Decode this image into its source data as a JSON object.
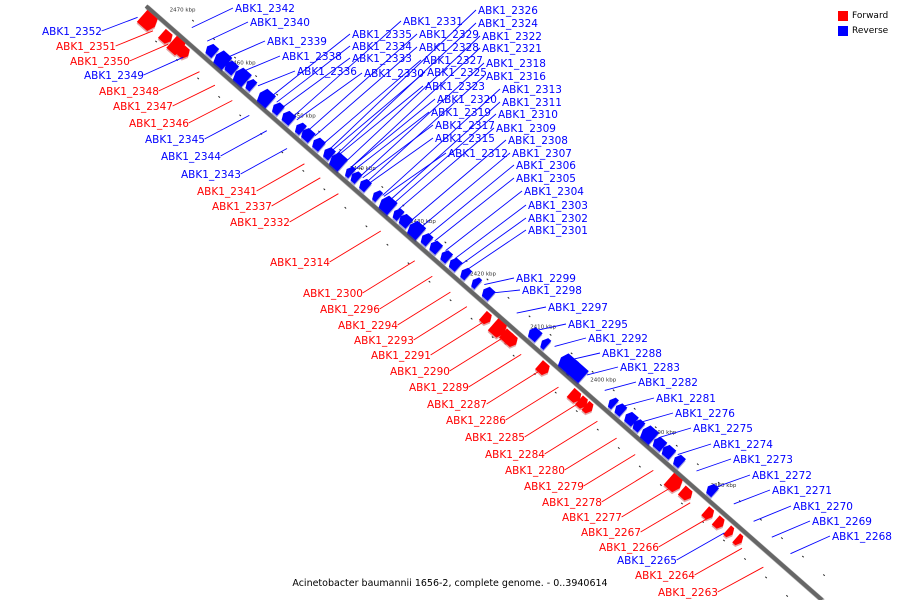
{
  "legend": {
    "forward_label": "Forward",
    "reverse_label": "Reverse",
    "forward_color": "#ff0000",
    "reverse_color": "#0000ff"
  },
  "caption": "Acinetobacter baumannii 1656-2, complete genome. - 0..3940614",
  "scale_labels": [
    "2470 kbp",
    "2460 kbp",
    "2450 kbp",
    "2440 kbp",
    "2430 kbp",
    "2420 kbp",
    "2410 kbp",
    "2400 kbp",
    "2390 kbp",
    "2380 kbp"
  ],
  "genes": [
    {
      "label": "ABK1_2352",
      "strand": "reverse"
    },
    {
      "label": "ABK1_2351",
      "strand": "forward"
    },
    {
      "label": "ABK1_2350",
      "strand": "forward"
    },
    {
      "label": "ABK1_2349",
      "strand": "reverse"
    },
    {
      "label": "ABK1_2348",
      "strand": "forward"
    },
    {
      "label": "ABK1_2347",
      "strand": "forward"
    },
    {
      "label": "ABK1_2346",
      "strand": "forward"
    },
    {
      "label": "ABK1_2345",
      "strand": "reverse"
    },
    {
      "label": "ABK1_2344",
      "strand": "reverse"
    },
    {
      "label": "ABK1_2343",
      "strand": "reverse"
    },
    {
      "label": "ABK1_2341",
      "strand": "forward"
    },
    {
      "label": "ABK1_2337",
      "strand": "forward"
    },
    {
      "label": "ABK1_2332",
      "strand": "forward"
    },
    {
      "label": "ABK1_2314",
      "strand": "forward"
    },
    {
      "label": "ABK1_2342",
      "strand": "reverse"
    },
    {
      "label": "ABK1_2340",
      "strand": "reverse"
    },
    {
      "label": "ABK1_2339",
      "strand": "reverse"
    },
    {
      "label": "ABK1_2338",
      "strand": "reverse"
    },
    {
      "label": "ABK1_2336",
      "strand": "reverse"
    },
    {
      "label": "ABK1_2335",
      "strand": "reverse"
    },
    {
      "label": "ABK1_2334",
      "strand": "reverse"
    },
    {
      "label": "ABK1_2333",
      "strand": "reverse"
    },
    {
      "label": "ABK1_2330",
      "strand": "reverse"
    },
    {
      "label": "ABK1_2331",
      "strand": "reverse"
    },
    {
      "label": "ABK1_2329",
      "strand": "reverse"
    },
    {
      "label": "ABK1_2328",
      "strand": "reverse"
    },
    {
      "label": "ABK1_2327",
      "strand": "reverse"
    },
    {
      "label": "ABK1_2325",
      "strand": "reverse"
    },
    {
      "label": "ABK1_2323",
      "strand": "reverse"
    },
    {
      "label": "ABK1_2320",
      "strand": "reverse"
    },
    {
      "label": "ABK1_2319",
      "strand": "reverse"
    },
    {
      "label": "ABK1_2317",
      "strand": "reverse"
    },
    {
      "label": "ABK1_2315",
      "strand": "reverse"
    },
    {
      "label": "ABK1_2312",
      "strand": "reverse"
    },
    {
      "label": "ABK1_2326",
      "strand": "reverse"
    },
    {
      "label": "ABK1_2324",
      "strand": "reverse"
    },
    {
      "label": "ABK1_2322",
      "strand": "reverse"
    },
    {
      "label": "ABK1_2321",
      "strand": "reverse"
    },
    {
      "label": "ABK1_2318",
      "strand": "reverse"
    },
    {
      "label": "ABK1_2316",
      "strand": "reverse"
    },
    {
      "label": "ABK1_2313",
      "strand": "reverse"
    },
    {
      "label": "ABK1_2311",
      "strand": "reverse"
    },
    {
      "label": "ABK1_2310",
      "strand": "reverse"
    },
    {
      "label": "ABK1_2309",
      "strand": "reverse"
    },
    {
      "label": "ABK1_2308",
      "strand": "reverse"
    },
    {
      "label": "ABK1_2307",
      "strand": "reverse"
    },
    {
      "label": "ABK1_2306",
      "strand": "reverse"
    },
    {
      "label": "ABK1_2305",
      "strand": "reverse"
    },
    {
      "label": "ABK1_2304",
      "strand": "reverse"
    },
    {
      "label": "ABK1_2303",
      "strand": "reverse"
    },
    {
      "label": "ABK1_2302",
      "strand": "reverse"
    },
    {
      "label": "ABK1_2301",
      "strand": "reverse"
    },
    {
      "label": "ABK1_2299",
      "strand": "reverse"
    },
    {
      "label": "ABK1_2298",
      "strand": "reverse"
    },
    {
      "label": "ABK1_2297",
      "strand": "reverse"
    },
    {
      "label": "ABK1_2295",
      "strand": "reverse"
    },
    {
      "label": "ABK1_2292",
      "strand": "reverse"
    },
    {
      "label": "ABK1_2288",
      "strand": "reverse"
    },
    {
      "label": "ABK1_2283",
      "strand": "reverse"
    },
    {
      "label": "ABK1_2282",
      "strand": "reverse"
    },
    {
      "label": "ABK1_2281",
      "strand": "reverse"
    },
    {
      "label": "ABK1_2276",
      "strand": "reverse"
    },
    {
      "label": "ABK1_2275",
      "strand": "reverse"
    },
    {
      "label": "ABK1_2274",
      "strand": "reverse"
    },
    {
      "label": "ABK1_2273",
      "strand": "reverse"
    },
    {
      "label": "ABK1_2272",
      "strand": "reverse"
    },
    {
      "label": "ABK1_2271",
      "strand": "reverse"
    },
    {
      "label": "ABK1_2270",
      "strand": "reverse"
    },
    {
      "label": "ABK1_2269",
      "strand": "reverse"
    },
    {
      "label": "ABK1_2268",
      "strand": "reverse"
    },
    {
      "label": "ABK1_2300",
      "strand": "forward"
    },
    {
      "label": "ABK1_2296",
      "strand": "forward"
    },
    {
      "label": "ABK1_2294",
      "strand": "forward"
    },
    {
      "label": "ABK1_2293",
      "strand": "forward"
    },
    {
      "label": "ABK1_2291",
      "strand": "forward"
    },
    {
      "label": "ABK1_2290",
      "strand": "forward"
    },
    {
      "label": "ABK1_2289",
      "strand": "forward"
    },
    {
      "label": "ABK1_2287",
      "strand": "forward"
    },
    {
      "label": "ABK1_2286",
      "strand": "forward"
    },
    {
      "label": "ABK1_2285",
      "strand": "forward"
    },
    {
      "label": "ABK1_2284",
      "strand": "forward"
    },
    {
      "label": "ABK1_2280",
      "strand": "forward"
    },
    {
      "label": "ABK1_2279",
      "strand": "forward"
    },
    {
      "label": "ABK1_2278",
      "strand": "forward"
    },
    {
      "label": "ABK1_2277",
      "strand": "forward"
    },
    {
      "label": "ABK1_2267",
      "strand": "forward"
    },
    {
      "label": "ABK1_2266",
      "strand": "forward"
    },
    {
      "label": "ABK1_2265",
      "strand": "reverse"
    },
    {
      "label": "ABK1_2264",
      "strand": "forward"
    },
    {
      "label": "ABK1_2263",
      "strand": "forward"
    }
  ]
}
